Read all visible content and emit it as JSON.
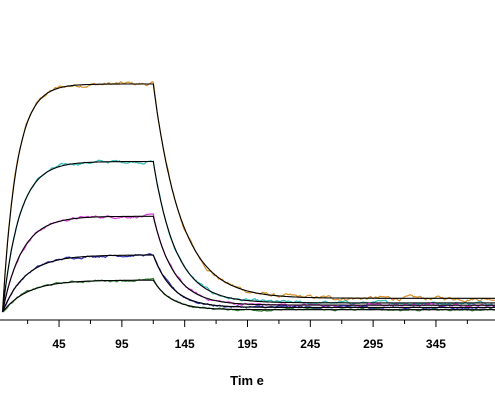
{
  "chart_data": {
    "type": "line",
    "title": "",
    "xlabel": "Tim e",
    "ylabel": "",
    "x_ticks": [
      45,
      95,
      145,
      195,
      245,
      295,
      345
    ],
    "xlim": [
      -2,
      392
    ],
    "ylim": [
      0,
      100
    ],
    "grid": false,
    "legend": "none",
    "association_end": 120,
    "series": [
      {
        "color": "#d4902a",
        "fit_color": "#000000",
        "plateau": 100,
        "k_on": 0.09,
        "k_off": 0.045,
        "residual": 6,
        "noise": 1.2
      },
      {
        "color": "#2ebcb8",
        "fit_color": "#000000",
        "plateau": 66,
        "k_on": 0.075,
        "k_off": 0.055,
        "residual": 4,
        "noise": 0.9
      },
      {
        "color": "#d63ad6",
        "fit_color": "#000000",
        "plateau": 42,
        "k_on": 0.065,
        "k_off": 0.06,
        "residual": 3,
        "noise": 0.8
      },
      {
        "color": "#2a2aa8",
        "fit_color": "#000000",
        "plateau": 25,
        "k_on": 0.055,
        "k_off": 0.065,
        "residual": 2,
        "noise": 0.7
      },
      {
        "color": "#2e7d32",
        "fit_color": "#000000",
        "plateau": 14,
        "k_on": 0.05,
        "k_off": 0.07,
        "residual": 1,
        "noise": 0.6
      }
    ]
  }
}
